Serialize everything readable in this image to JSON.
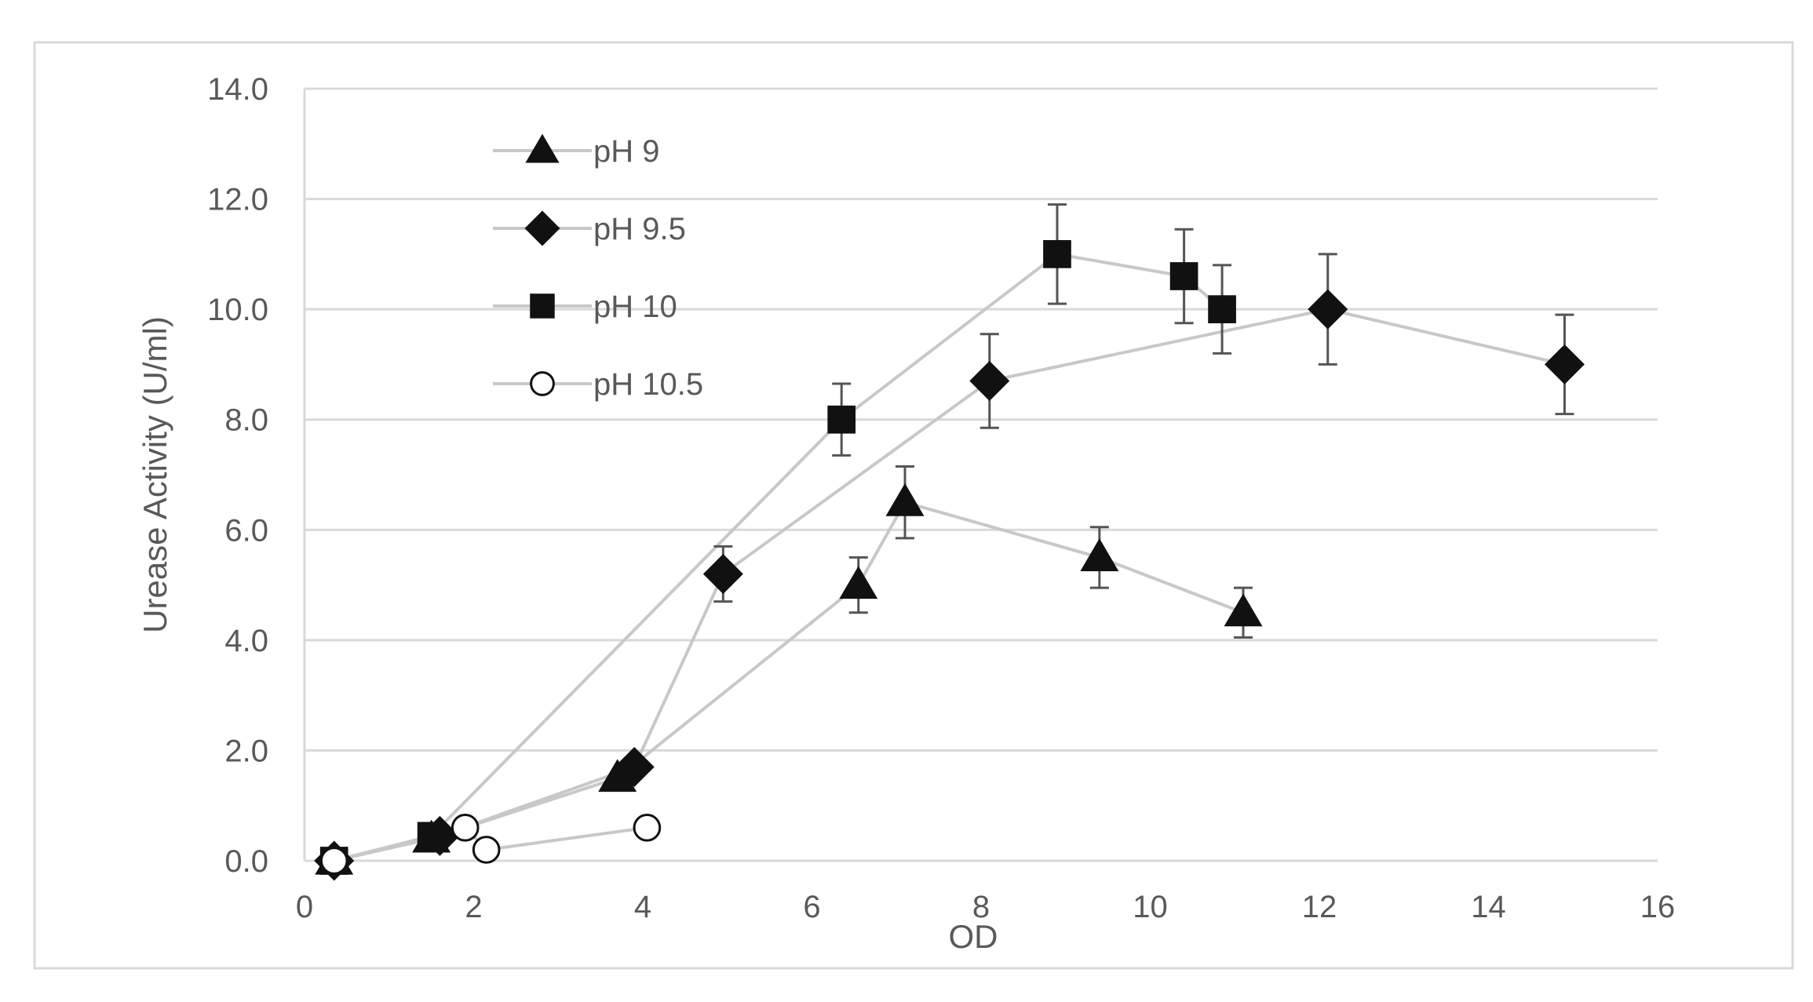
{
  "chart_data": {
    "type": "scatter",
    "title": "",
    "xlabel": "OD",
    "ylabel": "Urease Activity (U/ml)",
    "xlim": [
      0,
      16
    ],
    "ylim": [
      0,
      14
    ],
    "x_ticks": [
      "0",
      "2",
      "4",
      "6",
      "8",
      "10",
      "12",
      "14",
      "16"
    ],
    "y_ticks": [
      "0.0",
      "2.0",
      "4.0",
      "6.0",
      "8.0",
      "10.0",
      "12.0",
      "14.0"
    ],
    "grid": "horizontal",
    "legend_position": "top-left",
    "colors": {
      "series_line": "#c8c8c8",
      "marker": "#111111",
      "grid": "#d9d9d9",
      "axis_text": "#595959",
      "frame": "#d9d9d9"
    },
    "series": [
      {
        "name": "pH 9",
        "marker": "triangle",
        "points": [
          {
            "x": 0.35,
            "y": 0.0,
            "err": 0
          },
          {
            "x": 1.5,
            "y": 0.4,
            "err": 0
          },
          {
            "x": 3.7,
            "y": 1.5,
            "err": 0
          },
          {
            "x": 6.55,
            "y": 5.0,
            "err": 0.5
          },
          {
            "x": 7.1,
            "y": 6.5,
            "err": 0.65
          },
          {
            "x": 9.4,
            "y": 5.5,
            "err": 0.55
          },
          {
            "x": 11.1,
            "y": 4.5,
            "err": 0.45
          }
        ]
      },
      {
        "name": "pH 9.5",
        "marker": "diamond",
        "points": [
          {
            "x": 0.35,
            "y": 0.0,
            "err": 0
          },
          {
            "x": 1.6,
            "y": 0.45,
            "err": 0
          },
          {
            "x": 3.9,
            "y": 1.7,
            "err": 0
          },
          {
            "x": 4.95,
            "y": 5.2,
            "err": 0.5
          },
          {
            "x": 8.1,
            "y": 8.7,
            "err": 0.85
          },
          {
            "x": 12.1,
            "y": 10.0,
            "err": 1.0
          },
          {
            "x": 14.9,
            "y": 9.0,
            "err": 0.9
          }
        ]
      },
      {
        "name": "pH 10",
        "marker": "square",
        "points": [
          {
            "x": 0.35,
            "y": 0.0,
            "err": 0
          },
          {
            "x": 1.5,
            "y": 0.45,
            "err": 0
          },
          {
            "x": 6.35,
            "y": 8.0,
            "err": 0.65
          },
          {
            "x": 8.9,
            "y": 11.0,
            "err": 0.9
          },
          {
            "x": 10.4,
            "y": 10.6,
            "err": 0.85
          },
          {
            "x": 10.85,
            "y": 10.0,
            "err": 0.8
          }
        ]
      },
      {
        "name": "pH 10.5",
        "marker": "circle-open",
        "points": [
          {
            "x": 0.35,
            "y": 0.0,
            "err": 0
          },
          {
            "x": 1.9,
            "y": 0.6,
            "err": 0
          },
          {
            "x": 2.15,
            "y": 0.2,
            "err": 0
          },
          {
            "x": 4.05,
            "y": 0.6,
            "err": 0.1
          }
        ]
      }
    ]
  }
}
